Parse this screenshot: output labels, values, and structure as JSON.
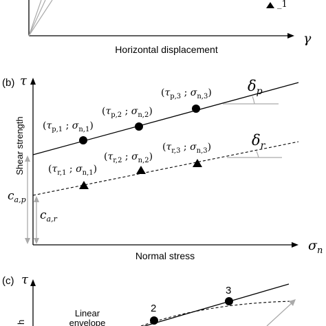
{
  "panel_a": {
    "x_axis_label": "Horizontal displacement",
    "x_axis_symbol": "γ"
  },
  "panel_b": {
    "panel_label": "(b)",
    "y_axis_symbol": "τ",
    "y_axis_label": "Shear strength",
    "x_axis_label": "Normal stress",
    "x_axis_symbol": "σ",
    "x_axis_symbol_sub": "n",
    "peak_angle": {
      "sym": "δ",
      "sub": "p"
    },
    "residual_angle": {
      "sym": "δ",
      "sub": "r"
    },
    "peak_points": [
      {
        "t_sub": "p,1",
        "s_sub": "n,1"
      },
      {
        "t_sub": "p,2",
        "s_sub": "n,2"
      },
      {
        "t_sub": "p,3",
        "s_sub": "n,3"
      }
    ],
    "residual_points": [
      {
        "t_sub": "r,1",
        "s_sub": "n,1"
      },
      {
        "t_sub": "r,2",
        "s_sub": "n,2"
      },
      {
        "t_sub": "r,3",
        "s_sub": "n,3"
      }
    ],
    "intercept_peak": {
      "sym": "c",
      "sub": "a,p"
    },
    "intercept_residual": {
      "sym": "c",
      "sub": "a,r"
    }
  },
  "panel_c": {
    "panel_label": "(c)",
    "y_axis_symbol": "τ",
    "envelope_label_line1": "Linear",
    "envelope_label_line2": "envelope",
    "point_labels": [
      "2",
      "3"
    ]
  }
}
